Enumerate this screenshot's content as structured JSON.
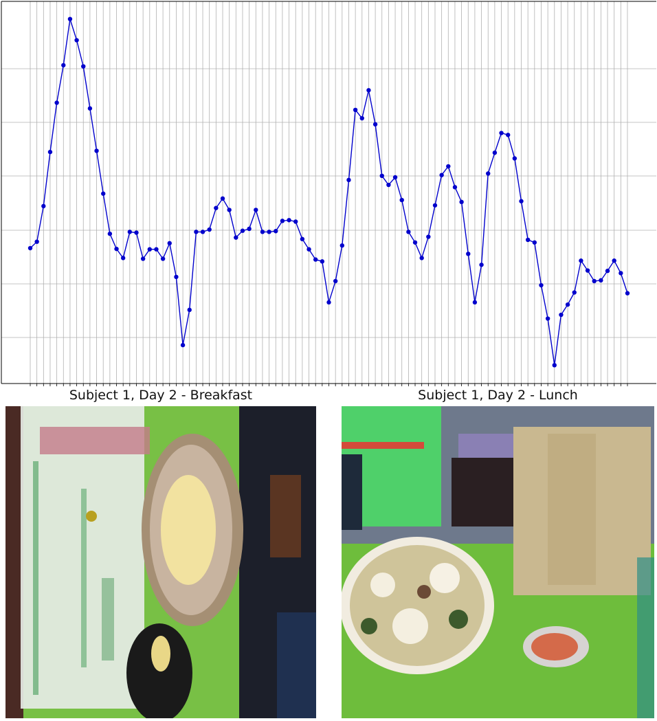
{
  "chart_data": {
    "type": "line",
    "title": "",
    "xlabel": "",
    "ylabel": "",
    "grid": true,
    "ylim": [
      0,
      100
    ],
    "series_color": "#0000cc",
    "x": [
      0,
      1,
      2,
      3,
      4,
      5,
      6,
      7,
      8,
      9,
      10,
      11,
      12,
      13,
      14,
      15,
      16,
      17,
      18,
      19,
      20,
      21,
      22,
      23,
      24,
      25,
      26,
      27,
      28,
      29,
      30,
      31,
      32,
      33,
      34,
      35,
      36,
      37,
      38,
      39,
      40,
      41,
      42,
      43,
      44,
      45,
      46,
      47,
      48,
      49,
      50,
      51,
      52,
      53,
      54,
      55,
      56,
      57,
      58,
      59,
      60,
      61,
      62,
      63,
      64,
      65,
      66,
      67,
      68,
      69,
      70,
      71,
      72,
      73,
      74,
      75,
      76,
      77,
      78,
      79,
      80,
      81,
      82,
      83,
      84,
      85,
      86,
      87,
      88,
      89,
      90
    ],
    "values": [
      35.2,
      36.9,
      46.3,
      60.6,
      73.6,
      83.5,
      95.7,
      90.1,
      83.2,
      72.1,
      60.9,
      49.6,
      39.0,
      35.0,
      32.6,
      39.5,
      39.3,
      32.4,
      34.9,
      34.9,
      32.4,
      36.5,
      27.6,
      9.6,
      18.9,
      39.5,
      39.5,
      40.1,
      45.8,
      48.3,
      45.3,
      38.0,
      39.8,
      40.3,
      45.3,
      39.5,
      39.5,
      39.7,
      42.4,
      42.6,
      42.2,
      37.6,
      34.9,
      32.2,
      31.7,
      20.9,
      26.5,
      35.9,
      53.2,
      71.7,
      69.5,
      76.9,
      67.9,
      54.3,
      51.9,
      53.9,
      47.9,
      39.5,
      36.7,
      32.6,
      38.2,
      46.5,
      54.5,
      56.8,
      51.3,
      47.4,
      33.7,
      20.9,
      30.8,
      54.9,
      60.4,
      65.6,
      65.1,
      58.9,
      47.6,
      37.4,
      36.7,
      25.4,
      16.6,
      4.3,
      17.6,
      20.3,
      23.5,
      31.9,
      29.3,
      26.5,
      26.7,
      29.2,
      31.9,
      28.6,
      23.3
    ]
  },
  "captions": {
    "left": "Subject 1, Day 2 - Breakfast",
    "right": "Subject 1, Day 2 - Lunch"
  }
}
